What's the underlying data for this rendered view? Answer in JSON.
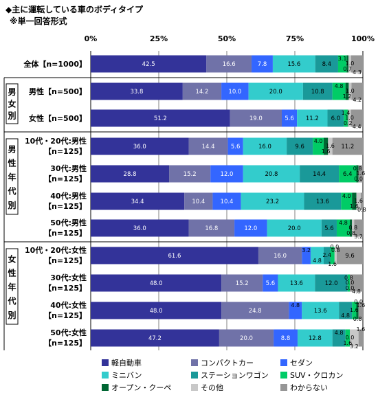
{
  "title": "◆主に運転している車のボディタイプ",
  "subtitle": "※単一回答形式",
  "chart_data": {
    "type": "bar",
    "orientation": "horizontal",
    "stacked": true,
    "xlim": [
      0,
      100
    ],
    "x_ticks": [
      "0%",
      "25%",
      "50%",
      "75%",
      "100%"
    ],
    "groups": [
      {
        "label": "",
        "rows": [
          0
        ]
      },
      {
        "label": "男女別",
        "rows": [
          1,
          2
        ]
      },
      {
        "label": "男性年代別",
        "rows": [
          3,
          4,
          5,
          6
        ]
      },
      {
        "label": "女性年代別",
        "rows": [
          7,
          8,
          9,
          10
        ]
      }
    ],
    "categories": [
      [
        "全体【n=1000】"
      ],
      [
        "男性【n=500】"
      ],
      [
        "女性【n=500】"
      ],
      [
        "10代・20代:男性",
        "【n=125】"
      ],
      [
        "30代:男性",
        "【n=125】"
      ],
      [
        "40代:男性",
        "【n=125】"
      ],
      [
        "50代:男性",
        "【n=125】"
      ],
      [
        "10代・20代:女性",
        "【n=125】"
      ],
      [
        "30代:女性",
        "【n=125】"
      ],
      [
        "40代:女性",
        "【n=125】"
      ],
      [
        "50代:女性",
        "【n=125】"
      ]
    ],
    "series": [
      {
        "name": "軽自動車",
        "color": "#333399",
        "text_color": "#ffffff",
        "values": [
          42.5,
          33.8,
          51.2,
          36.0,
          28.8,
          34.4,
          36.0,
          61.6,
          48.0,
          48.0,
          47.2
        ]
      },
      {
        "name": "コンパクトカー",
        "color": "#7072a8",
        "text_color": "#ffffff",
        "values": [
          16.6,
          14.2,
          19.0,
          14.4,
          15.2,
          10.4,
          16.8,
          16.0,
          15.2,
          24.8,
          20.0
        ]
      },
      {
        "name": "セダン",
        "color": "#3366ff",
        "text_color": "#ffffff",
        "values": [
          7.8,
          10.0,
          5.6,
          5.6,
          12.0,
          10.4,
          12.0,
          3.2,
          5.6,
          4.8,
          8.8
        ]
      },
      {
        "name": "ミニバン",
        "color": "#33cccc",
        "text_color": "#000000",
        "values": [
          15.6,
          20.0,
          11.2,
          16.0,
          20.8,
          23.2,
          20.0,
          4.8,
          13.6,
          13.6,
          12.8
        ]
      },
      {
        "name": "ステーションワゴン",
        "color": "#1a9999",
        "text_color": "#000000",
        "values": [
          8.4,
          10.8,
          6.0,
          9.6,
          14.4,
          13.6,
          5.6,
          2.4,
          12.0,
          4.8,
          4.8
        ]
      },
      {
        "name": "SUV・クロカン",
        "color": "#00cc66",
        "text_color": "#000000",
        "values": [
          3.1,
          4.8,
          1.4,
          4.0,
          6.4,
          4.0,
          4.8,
          1.6,
          0.8,
          1.6,
          1.6
        ]
      },
      {
        "name": "オープン・クーペ",
        "color": "#006633",
        "text_color": "#000000",
        "values": [
          0.7,
          1.2,
          0.2,
          1.6,
          0.8,
          1.6,
          0.8,
          0.0,
          0.0,
          0.8,
          0.0
        ]
      },
      {
        "name": "その他",
        "color": "#c8c8c8",
        "text_color": "#000000",
        "values": [
          1.0,
          1.0,
          1.0,
          1.6,
          0.0,
          1.6,
          0.8,
          0.8,
          0.0,
          0.0,
          3.2
        ]
      },
      {
        "name": "わからない",
        "color": "#969696",
        "text_color": "#000000",
        "values": [
          4.3,
          4.2,
          4.4,
          11.2,
          1.6,
          0.8,
          3.2,
          9.6,
          4.8,
          1.6,
          1.6
        ]
      }
    ]
  }
}
